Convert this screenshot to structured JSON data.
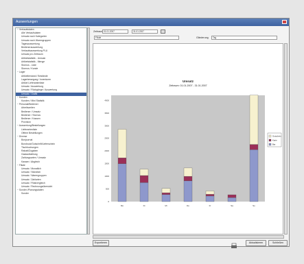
{
  "window": {
    "title": "Auswertungen"
  },
  "sidebar": {
    "items": [
      {
        "label": "Verkaufsdaten",
        "indent": 0
      },
      {
        "label": "Alle Verkaufsdaten",
        "indent": 1
      },
      {
        "label": "Umsatz nach Kategorien",
        "indent": 1
      },
      {
        "label": "Umsatz nach Warengruppen",
        "indent": 1
      },
      {
        "label": "Tagesauswertung",
        "indent": 1
      },
      {
        "label": "Bedienerauswertung",
        "indent": 1
      },
      {
        "label": "Verkaufsauswertung PLU",
        "indent": 1
      },
      {
        "label": "Umsatz pro Zeitraum",
        "indent": 1
      },
      {
        "label": "Artikelstatistik - Umsatz",
        "indent": 1
      },
      {
        "label": "Artikelstatistik - Menge",
        "indent": 1
      },
      {
        "label": "Stornos - Liste",
        "indent": 1
      },
      {
        "label": "Stornos / Kunde",
        "indent": 1
      },
      {
        "label": "Lager",
        "indent": 0
      },
      {
        "label": "Artikelbestand / Bestände",
        "indent": 1
      },
      {
        "label": "Lagerbewegung / Inventuren",
        "indent": 1
      },
      {
        "label": "Artikel Lieferantenliste",
        "indent": 1
      },
      {
        "label": "Umsatz / Auswertung",
        "indent": 1
      },
      {
        "label": "Umsatz / Rückgänge / Auswertung",
        "indent": 1
      },
      {
        "label": "Umsatz / Grafik",
        "indent": 1
      },
      {
        "label": "Kunden",
        "indent": 0
      },
      {
        "label": "Kunden / Mini Statistik",
        "indent": 1
      },
      {
        "label": "Personal/Bediener",
        "indent": 0
      },
      {
        "label": "Arbeitszeiten",
        "indent": 1
      },
      {
        "label": "Bediener / Umsatz",
        "indent": 1
      },
      {
        "label": "Bediener / Stornos",
        "indent": 1
      },
      {
        "label": "Bediener / Kassen",
        "indent": 1
      },
      {
        "label": "Provision",
        "indent": 1
      },
      {
        "label": "Auswertung/Bestellungen",
        "indent": 0
      },
      {
        "label": "Lieferantenliste",
        "indent": 1
      },
      {
        "label": "Offene Bestellungen",
        "indent": 1
      },
      {
        "label": "Diverse",
        "indent": 0
      },
      {
        "label": "Bonjournal",
        "indent": 1
      },
      {
        "label": "Bondruck/Gutschrift/Lieferschein",
        "indent": 1
      },
      {
        "label": "Tischbuchungen",
        "indent": 1
      },
      {
        "label": "Rabatt/Zugaben",
        "indent": 1
      },
      {
        "label": "Gastaufstellung",
        "indent": 1
      },
      {
        "label": "Zahlungsarten / Umsatz",
        "indent": 1
      },
      {
        "label": "Kassen / Abgleich",
        "indent": 1
      },
      {
        "label": "Filiale",
        "indent": 0
      },
      {
        "label": "Umsatz / Monatlich",
        "indent": 1
      },
      {
        "label": "Umsatz / Stündlich",
        "indent": 1
      },
      {
        "label": "Umsatz / Warengruppen",
        "indent": 1
      },
      {
        "label": "Umsatz / Zahlarten",
        "indent": 1
      },
      {
        "label": "Umsatz / Filialvergleich",
        "indent": 1
      },
      {
        "label": "Umsatz / Rechnungsübersicht",
        "indent": 1
      },
      {
        "label": "Sonder-/Planungsdaten",
        "indent": 0
      },
      {
        "label": "Sonder",
        "indent": 1
      }
    ],
    "selected_index": 18
  },
  "toolbar": {
    "period_label": "Zeitraum",
    "date_from": "01.01.2007",
    "date_to": "31.01.2007",
    "left_select": "Filiale",
    "right_label": "Gliederung",
    "right_select": "Tag"
  },
  "chart_data": {
    "type": "bar",
    "stacked": true,
    "title": "Umsatz",
    "subtitle": "Zeitraum: 01.01.2007 - 31.01.2007",
    "categories": [
      "Mo",
      "Di",
      "Mi",
      "Do",
      "Fr",
      "Sa",
      "So"
    ],
    "series": [
      {
        "name": "Bar",
        "color": "#8e98cc",
        "values": [
          1500,
          750,
          280,
          820,
          220,
          160,
          2050
        ]
      },
      {
        "name": "Karte",
        "color": "#9b2f58",
        "values": [
          230,
          280,
          70,
          180,
          70,
          110,
          210
        ]
      },
      {
        "name": "Gutschein",
        "color": "#f7f1cf",
        "values": [
          1130,
          250,
          170,
          330,
          130,
          0,
          1950
        ]
      }
    ],
    "ylim": [
      0,
      4200
    ],
    "yticks": [
      "0",
      "500",
      "1000",
      "1500",
      "2000",
      "2500",
      "3000",
      "3500",
      "4000"
    ],
    "grid": false,
    "legend_position": "right"
  },
  "buttons": {
    "export_label": "Exportieren",
    "print_label": "Aktualisieren",
    "close_label": "Schließen"
  },
  "colors": {
    "plot_bg": "#c8c8c8",
    "titlebar": "#3e62a0"
  }
}
